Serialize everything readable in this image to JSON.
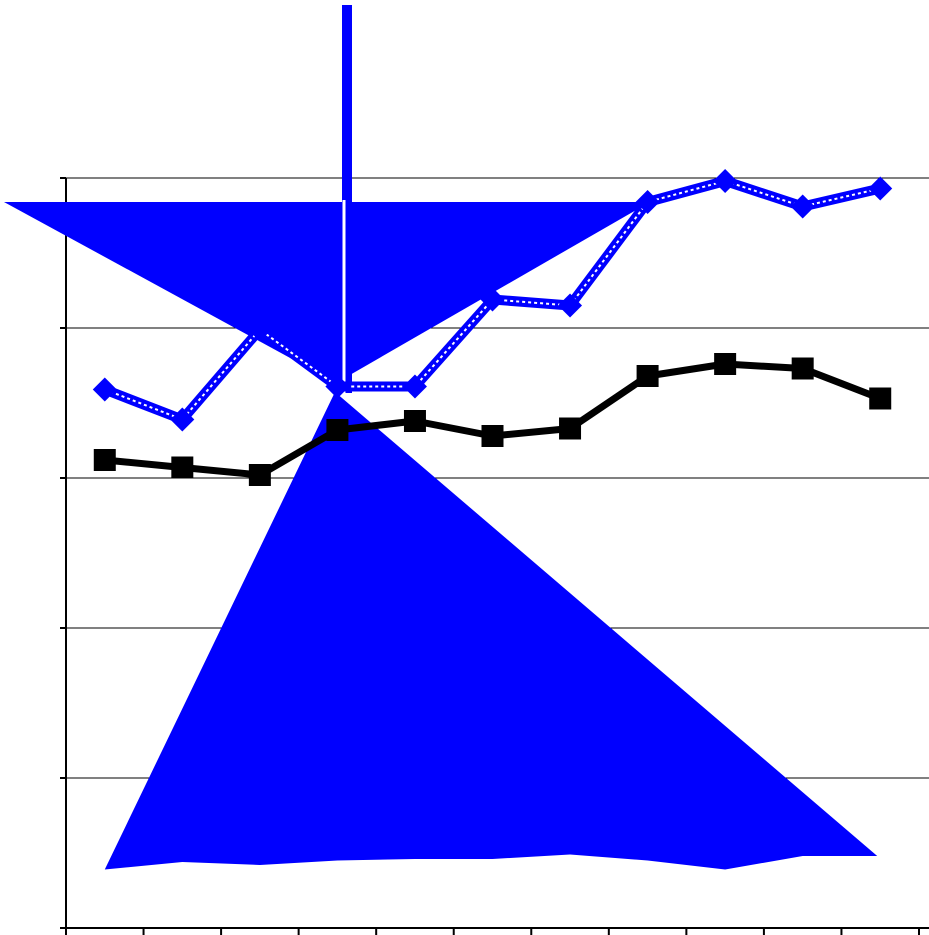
{
  "chart_data": {
    "type": "line",
    "title": "",
    "xlabel": "",
    "ylabel": "",
    "x_count": 11,
    "ylim": [
      0,
      5
    ],
    "y_gridlines": [
      1,
      2,
      3,
      4,
      5
    ],
    "grid": true,
    "legend": "none",
    "series": [
      {
        "marker": "diamond",
        "line_style": "dotted-double",
        "color": "#0000ff",
        "values": [
          3.59,
          3.39,
          3.99,
          3.61,
          3.61,
          4.19,
          4.15,
          4.84,
          4.98,
          4.81,
          4.93
        ]
      },
      {
        "marker": "square",
        "line_style": "solid",
        "color": "#000000",
        "values": [
          3.12,
          3.07,
          3.02,
          3.32,
          3.38,
          3.28,
          3.33,
          3.68,
          3.76,
          3.73,
          3.53
        ]
      },
      {
        "type": "area",
        "color": "#0000ff",
        "values": [
          0.39,
          0.44,
          0.42,
          0.45,
          0.46,
          0.46,
          0.49,
          0.45,
          0.39,
          0.48,
          0.48
        ]
      }
    ],
    "overlays": [
      {
        "shape": "funnel-top",
        "color": "#0000ff"
      },
      {
        "shape": "vertical-bar",
        "color": "#0000ff"
      }
    ]
  }
}
